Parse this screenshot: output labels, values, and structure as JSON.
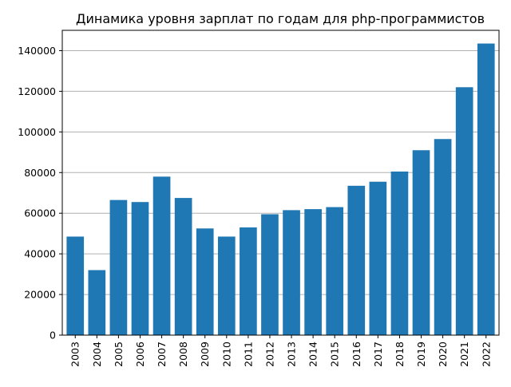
{
  "chart_data": {
    "type": "bar",
    "title": "Динамика уровня зарплат по годам для php-программистов",
    "xlabel": "",
    "ylabel": "",
    "categories": [
      "2003",
      "2004",
      "2005",
      "2006",
      "2007",
      "2008",
      "2009",
      "2010",
      "2011",
      "2012",
      "2013",
      "2014",
      "2015",
      "2016",
      "2017",
      "2018",
      "2019",
      "2020",
      "2021",
      "2022"
    ],
    "values": [
      48500,
      32000,
      66500,
      65500,
      78000,
      67500,
      52500,
      48500,
      53000,
      59500,
      61500,
      62000,
      63000,
      73500,
      75500,
      80500,
      91000,
      96500,
      122000,
      143500
    ],
    "ylim": [
      0,
      150000
    ],
    "yticks": [
      0,
      20000,
      40000,
      60000,
      80000,
      100000,
      120000,
      140000
    ],
    "grid": "horizontal",
    "bar_color": "#1f77b4",
    "grid_color": "#b0b0b0"
  }
}
